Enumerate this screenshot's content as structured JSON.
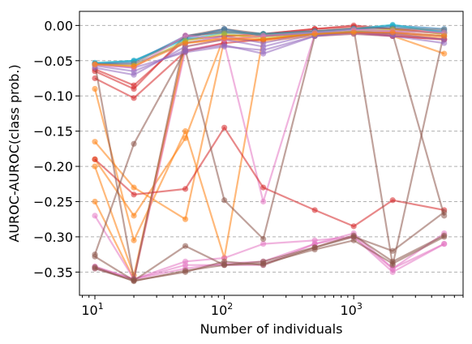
{
  "chart_data": {
    "type": "line",
    "title": "",
    "xlabel": "Number of individuals",
    "ylabel": "AUROC-AUROC(class prob.)",
    "xscale": "log",
    "xlim": [
      7.6,
      7000
    ],
    "ylim": [
      -0.383,
      0.02
    ],
    "x": [
      10,
      20,
      50,
      100,
      200,
      500,
      1000,
      2000,
      5000
    ],
    "x_ticks": [
      {
        "value": 10,
        "base": "10",
        "exp": "1"
      },
      {
        "value": 100,
        "base": "10",
        "exp": "2"
      },
      {
        "value": 1000,
        "base": "10",
        "exp": "3"
      }
    ],
    "y_ticks": [
      0.0,
      -0.05,
      -0.1,
      -0.15,
      -0.2,
      -0.25,
      -0.3,
      -0.35
    ],
    "y_tick_labels": [
      "0.00",
      "−0.05",
      "−0.10",
      "−0.15",
      "−0.20",
      "−0.25",
      "−0.30",
      "−0.35"
    ],
    "grid": "horizontal-dashed",
    "legend": "none",
    "series": [
      {
        "color": "#ff7f0e",
        "values": [
          -0.19,
          -0.27,
          -0.16,
          -0.015,
          -0.015,
          -0.012,
          -0.01,
          -0.01,
          -0.015
        ]
      },
      {
        "color": "#ff7f0e",
        "values": [
          -0.25,
          -0.36,
          -0.03,
          -0.02,
          -0.02,
          -0.012,
          -0.01,
          -0.012,
          -0.02
        ]
      },
      {
        "color": "#ff7f0e",
        "values": [
          -0.165,
          -0.23,
          -0.275,
          -0.02,
          -0.022,
          -0.015,
          -0.012,
          -0.015,
          -0.04
        ]
      },
      {
        "color": "#ff7f0e",
        "values": [
          -0.09,
          -0.305,
          -0.15,
          -0.33,
          -0.015,
          -0.01,
          -0.01,
          -0.015,
          -0.02
        ]
      },
      {
        "color": "#ff7f0e",
        "values": [
          -0.2,
          -0.355,
          -0.025,
          -0.02,
          -0.015,
          -0.012,
          -0.01,
          -0.012,
          -0.018
        ]
      },
      {
        "color": "#e377c2",
        "values": [
          -0.27,
          -0.36,
          -0.035,
          -0.025,
          -0.25,
          -0.012,
          -0.01,
          -0.015,
          -0.02
        ]
      },
      {
        "color": "#e377c2",
        "values": [
          -0.345,
          -0.36,
          -0.335,
          -0.33,
          -0.31,
          -0.305,
          -0.3,
          -0.345,
          -0.295
        ]
      },
      {
        "color": "#e377c2",
        "values": [
          -0.343,
          -0.36,
          -0.34,
          -0.34,
          -0.34,
          -0.31,
          -0.3,
          -0.35,
          -0.31
        ]
      },
      {
        "color": "#e377c2",
        "values": [
          -0.342,
          -0.36,
          -0.345,
          -0.338,
          -0.335,
          -0.31,
          -0.295,
          -0.345,
          -0.31
        ]
      },
      {
        "color": "#d62728",
        "values": [
          -0.19,
          -0.24,
          -0.232,
          -0.145,
          -0.23,
          -0.262,
          -0.285,
          -0.248,
          -0.262
        ]
      },
      {
        "color": "#d62728",
        "values": [
          -0.075,
          -0.103,
          -0.037,
          -0.025,
          -0.02,
          -0.012,
          -0.01,
          -0.015,
          -0.02
        ]
      },
      {
        "color": "#d62728",
        "values": [
          -0.065,
          -0.09,
          -0.015,
          -0.01,
          -0.012,
          -0.005,
          0.0,
          -0.005,
          -0.01
        ]
      },
      {
        "color": "#d62728",
        "values": [
          -0.062,
          -0.085,
          -0.02,
          -0.015,
          -0.012,
          -0.005,
          -0.002,
          -0.005,
          -0.012
        ]
      },
      {
        "color": "#8c564b",
        "values": [
          -0.325,
          -0.168,
          -0.035,
          -0.248,
          -0.303,
          -0.015,
          -0.008,
          -0.012,
          -0.27
        ]
      },
      {
        "color": "#8c564b",
        "values": [
          -0.328,
          -0.362,
          -0.313,
          -0.34,
          -0.335,
          -0.315,
          -0.3,
          -0.32,
          -0.265
        ]
      },
      {
        "color": "#8c564b",
        "values": [
          -0.055,
          -0.36,
          -0.015,
          -0.005,
          -0.012,
          -0.008,
          -0.005,
          -0.34,
          -0.01
        ]
      },
      {
        "color": "#8c564b",
        "values": [
          -0.345,
          -0.362,
          -0.35,
          -0.335,
          -0.34,
          -0.315,
          -0.298,
          -0.335,
          -0.298
        ]
      },
      {
        "color": "#8c564b",
        "values": [
          -0.343,
          -0.363,
          -0.348,
          -0.34,
          -0.338,
          -0.318,
          -0.305,
          -0.338,
          -0.3
        ]
      },
      {
        "color": "#9467bd",
        "values": [
          -0.055,
          -0.06,
          -0.038,
          -0.03,
          -0.035,
          -0.015,
          -0.012,
          -0.015,
          -0.025
        ]
      },
      {
        "color": "#9467bd",
        "values": [
          -0.057,
          -0.065,
          -0.035,
          -0.028,
          -0.04,
          -0.015,
          -0.01,
          -0.012,
          -0.02
        ]
      },
      {
        "color": "#9467bd",
        "values": [
          -0.06,
          -0.07,
          -0.03,
          -0.02,
          -0.03,
          -0.012,
          -0.008,
          -0.01,
          -0.015
        ]
      },
      {
        "color": "#9467bd",
        "values": [
          -0.054,
          -0.055,
          -0.025,
          -0.015,
          -0.025,
          -0.01,
          -0.005,
          -0.008,
          -0.01
        ]
      },
      {
        "color": "#1f77b4",
        "values": [
          -0.055,
          -0.052,
          -0.015,
          -0.008,
          -0.012,
          -0.008,
          -0.005,
          0.0,
          -0.005
        ]
      },
      {
        "color": "#1f77b4",
        "values": [
          -0.054,
          -0.05,
          -0.018,
          -0.005,
          -0.015,
          -0.01,
          -0.005,
          -0.002,
          -0.008
        ]
      },
      {
        "color": "#17becf",
        "values": [
          -0.053,
          -0.05,
          -0.02,
          -0.01,
          -0.012,
          -0.01,
          -0.005,
          0.001,
          -0.01
        ]
      },
      {
        "color": "#7f7f7f",
        "values": [
          -0.055,
          -0.054,
          -0.016,
          -0.008,
          -0.013,
          -0.008,
          -0.004,
          -0.004,
          -0.006
        ]
      },
      {
        "color": "#bcbd22",
        "values": [
          -0.056,
          -0.057,
          -0.022,
          -0.012,
          -0.018,
          -0.012,
          -0.008,
          -0.006,
          -0.012
        ]
      },
      {
        "color": "#e377c2",
        "values": [
          -0.056,
          -0.06,
          -0.014,
          -0.02,
          -0.015,
          -0.01,
          -0.006,
          -0.008,
          -0.01
        ]
      },
      {
        "color": "#ff7f0e",
        "values": [
          -0.055,
          -0.058,
          -0.025,
          -0.018,
          -0.02,
          -0.012,
          -0.01,
          -0.01,
          -0.015
        ]
      }
    ]
  }
}
